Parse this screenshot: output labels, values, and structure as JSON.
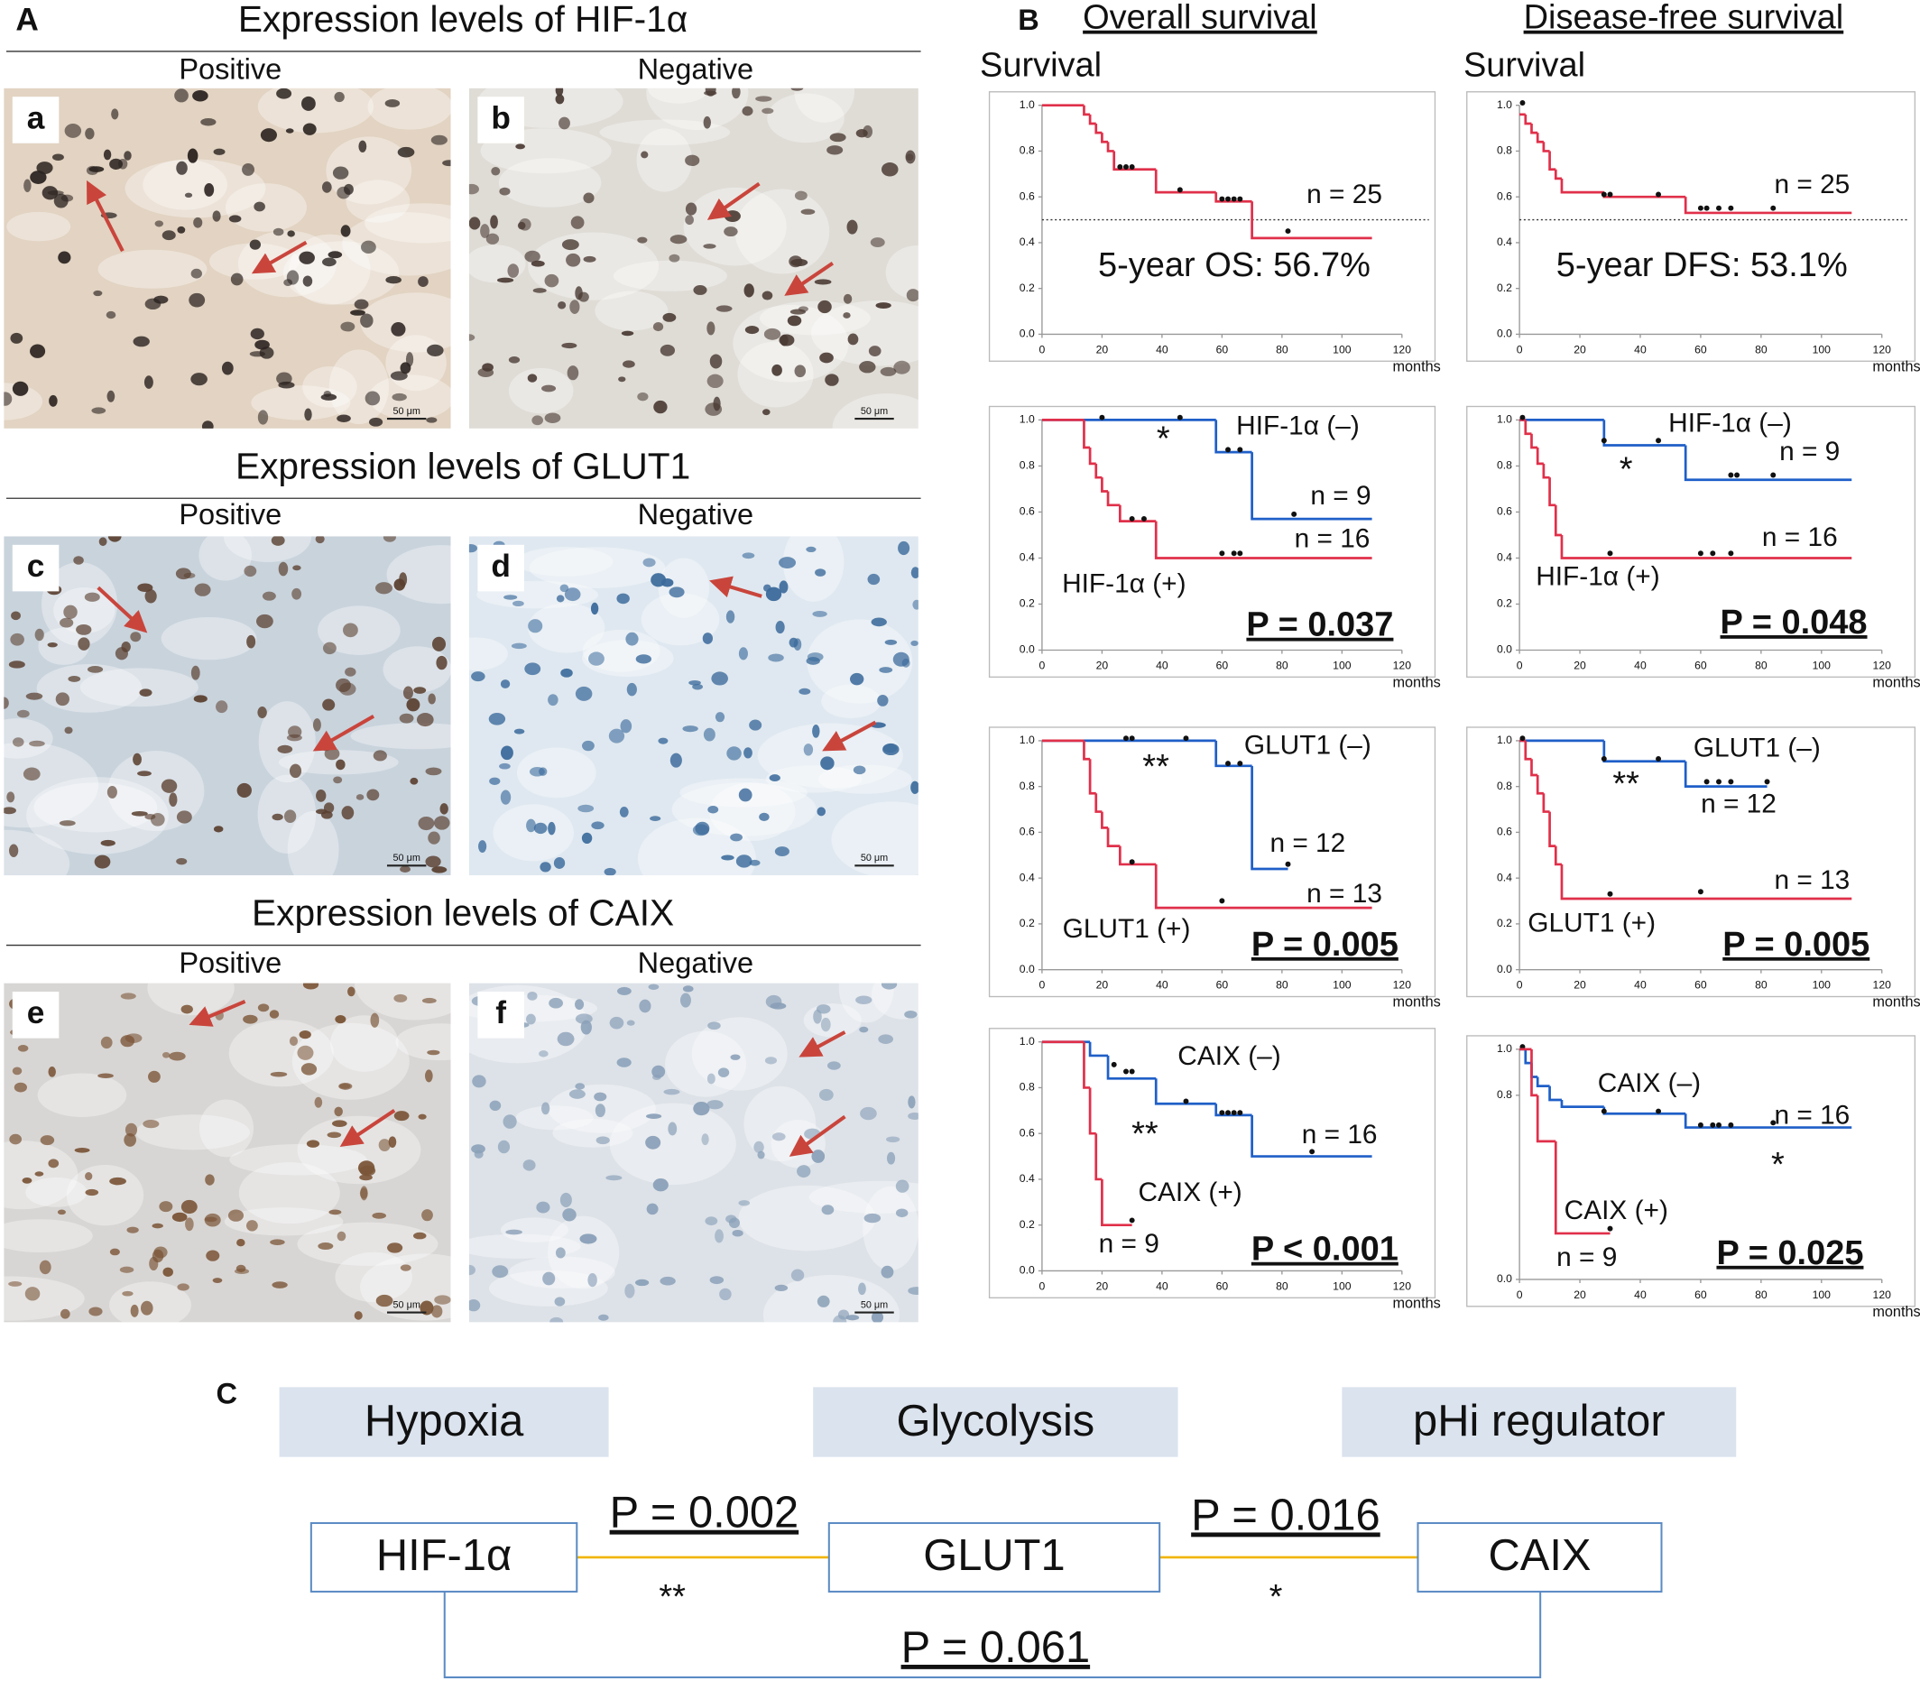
{
  "panel_a": {
    "label": "A",
    "rows": [
      {
        "title": "Expression levels of  HIF-1α",
        "positive": "Positive",
        "negative": "Negative",
        "images": [
          {
            "letter": "a",
            "scale": "50 μm"
          },
          {
            "letter": "b",
            "scale": "50 μm"
          }
        ]
      },
      {
        "title": "Expression levels of  GLUT1",
        "positive": "Positive",
        "negative": "Negative",
        "images": [
          {
            "letter": "c",
            "scale": "50 μm"
          },
          {
            "letter": "d",
            "scale": "50 μm"
          }
        ]
      },
      {
        "title": "Expression levels of  CAIX",
        "positive": "Positive",
        "negative": "Negative",
        "images": [
          {
            "letter": "e",
            "scale": "50 μm"
          },
          {
            "letter": "f",
            "scale": "50 μm"
          }
        ]
      }
    ]
  },
  "panel_b": {
    "label": "B",
    "columns": [
      "Overall survival",
      "Disease-free survival"
    ],
    "y_titles": [
      "Survival",
      "Survival"
    ]
  },
  "chart_data": [
    {
      "type": "step",
      "xlim": [
        0,
        120
      ],
      "ylim": [
        0,
        1
      ],
      "xticks": [
        0,
        20,
        40,
        60,
        80,
        100,
        120
      ],
      "yticks": [
        {
          "value": 0,
          "label": "0.0"
        },
        {
          "value": 0.2,
          "label": "0.2"
        },
        {
          "value": 0.4,
          "label": "0.4"
        },
        {
          "value": 0.6,
          "label": "0.6"
        },
        {
          "value": 0.8,
          "label": "0.8"
        },
        {
          "value": 1,
          "label": "1.0"
        }
      ],
      "xlabel": "months",
      "ref_line": 0.5,
      "series": [
        {
          "color": "#e0304a",
          "x": [
            0,
            14,
            16,
            18,
            20,
            22,
            24,
            38,
            58,
            70,
            110
          ],
          "values": [
            1,
            0.96,
            0.92,
            0.88,
            0.84,
            0.8,
            0.72,
            0.62,
            0.58,
            0.42,
            0.42
          ],
          "censored_x": [
            26,
            28,
            30,
            46,
            60,
            62,
            64,
            66,
            82
          ],
          "censored_values": [
            0.72,
            0.72,
            0.72,
            0.62,
            0.58,
            0.58,
            0.58,
            0.58,
            0.44
          ]
        }
      ],
      "annotations": [
        "n = 25",
        "5-year OS: 56.7%"
      ]
    },
    {
      "type": "step",
      "xlim": [
        0,
        120
      ],
      "ylim": [
        0,
        1
      ],
      "xticks": [
        0,
        20,
        40,
        60,
        80,
        100,
        120
      ],
      "yticks": [
        {
          "value": 0,
          "label": "0.0"
        },
        {
          "value": 0.2,
          "label": "0.2"
        },
        {
          "value": 0.4,
          "label": "0.4"
        },
        {
          "value": 0.6,
          "label": "0.6"
        },
        {
          "value": 0.8,
          "label": "0.8"
        },
        {
          "value": 1,
          "label": "1.0"
        }
      ],
      "xlabel": "months",
      "ref_line": 0.5,
      "series": [
        {
          "color": "#e0304a",
          "x": [
            0,
            2,
            4,
            6,
            8,
            10,
            12,
            14,
            28,
            55,
            110
          ],
          "values": [
            0.96,
            0.92,
            0.88,
            0.84,
            0.8,
            0.72,
            0.68,
            0.62,
            0.6,
            0.53,
            0.53
          ],
          "censored_x": [
            1,
            28,
            30,
            46,
            60,
            62,
            66,
            70,
            84
          ],
          "censored_values": [
            1,
            0.6,
            0.6,
            0.6,
            0.54,
            0.54,
            0.54,
            0.54,
            0.54
          ]
        }
      ],
      "annotations": [
        "n = 25",
        "5-year DFS: 53.1%"
      ]
    },
    {
      "type": "step",
      "xlim": [
        0,
        120
      ],
      "ylim": [
        0,
        1
      ],
      "xticks": [
        0,
        20,
        40,
        60,
        80,
        100,
        120
      ],
      "yticks": [
        {
          "value": 0,
          "label": "0.0"
        },
        {
          "value": 0.2,
          "label": "0.2"
        },
        {
          "value": 0.4,
          "label": "0.4"
        },
        {
          "value": 0.6,
          "label": "0.6"
        },
        {
          "value": 0.8,
          "label": "0.8"
        },
        {
          "value": 1,
          "label": "1.0"
        }
      ],
      "xlabel": "months",
      "series": [
        {
          "name": "HIF-1α (–)",
          "color": "#1f5fc8",
          "x": [
            0,
            58,
            70,
            110
          ],
          "values": [
            1,
            0.86,
            0.57,
            0.57
          ],
          "censored_x": [
            20,
            46,
            62,
            66,
            84
          ],
          "censored_values": [
            1,
            1,
            0.86,
            0.86,
            0.58
          ]
        },
        {
          "name": "HIF-1α (+)",
          "color": "#e0304a",
          "x": [
            0,
            14,
            16,
            18,
            20,
            22,
            26,
            38,
            110
          ],
          "values": [
            1,
            0.88,
            0.81,
            0.75,
            0.69,
            0.63,
            0.56,
            0.4,
            0.4
          ],
          "censored_x": [
            30,
            34,
            60,
            64,
            66
          ],
          "censored_values": [
            0.56,
            0.56,
            0.41,
            0.41,
            0.41
          ]
        }
      ],
      "annotations": [
        "*",
        "n = 9",
        "n = 16",
        "P = 0.037"
      ]
    },
    {
      "type": "step",
      "xlim": [
        0,
        120
      ],
      "ylim": [
        0,
        1
      ],
      "xticks": [
        0,
        20,
        40,
        60,
        80,
        100,
        120
      ],
      "yticks": [
        {
          "value": 0,
          "label": "0.0"
        },
        {
          "value": 0.2,
          "label": "0.2"
        },
        {
          "value": 0.4,
          "label": "0.4"
        },
        {
          "value": 0.6,
          "label": "0.6"
        },
        {
          "value": 0.8,
          "label": "0.8"
        },
        {
          "value": 1,
          "label": "1.0"
        }
      ],
      "xlabel": "months",
      "series": [
        {
          "name": "HIF-1α (–)",
          "color": "#1f5fc8",
          "x": [
            0,
            28,
            55,
            110
          ],
          "values": [
            1,
            0.89,
            0.74,
            0.74
          ],
          "censored_x": [
            28,
            46,
            70,
            72,
            84
          ],
          "censored_values": [
            0.9,
            0.9,
            0.75,
            0.75,
            0.75
          ]
        },
        {
          "name": "HIF-1α (+)",
          "color": "#e0304a",
          "x": [
            0,
            2,
            4,
            6,
            8,
            10,
            12,
            14,
            110
          ],
          "values": [
            1,
            0.94,
            0.88,
            0.81,
            0.75,
            0.63,
            0.5,
            0.4,
            0.4
          ],
          "censored_x": [
            1,
            30,
            60,
            64,
            70
          ],
          "censored_values": [
            1,
            0.41,
            0.41,
            0.41,
            0.41
          ]
        }
      ],
      "annotations": [
        "*",
        "n = 9",
        "n = 16",
        "P = 0.048"
      ]
    },
    {
      "type": "step",
      "xlim": [
        0,
        120
      ],
      "ylim": [
        0,
        1
      ],
      "xticks": [
        0,
        20,
        40,
        60,
        80,
        100,
        120
      ],
      "yticks": [
        {
          "value": 0,
          "label": "0.0"
        },
        {
          "value": 0.2,
          "label": "0.2"
        },
        {
          "value": 0.4,
          "label": "0.4"
        },
        {
          "value": 0.6,
          "label": "0.6"
        },
        {
          "value": 0.8,
          "label": "0.8"
        },
        {
          "value": 1,
          "label": "1.0"
        }
      ],
      "xlabel": "months",
      "series": [
        {
          "name": "GLUT1 (–)",
          "color": "#1f5fc8",
          "x": [
            0,
            58,
            70,
            82
          ],
          "values": [
            1,
            0.89,
            0.44,
            0.44
          ],
          "censored_x": [
            28,
            30,
            48,
            62,
            66,
            82
          ],
          "censored_values": [
            1,
            1,
            1,
            0.89,
            0.89,
            0.45
          ]
        },
        {
          "name": "GLUT1 (+)",
          "color": "#e0304a",
          "x": [
            0,
            14,
            16,
            18,
            20,
            22,
            26,
            38,
            110
          ],
          "values": [
            1,
            0.92,
            0.77,
            0.69,
            0.62,
            0.54,
            0.46,
            0.27,
            0.27
          ],
          "censored_x": [
            30,
            60
          ],
          "censored_values": [
            0.46,
            0.29
          ]
        }
      ],
      "annotations": [
        "**",
        "n = 12",
        "n = 13",
        "P = 0.005"
      ]
    },
    {
      "type": "step",
      "xlim": [
        0,
        120
      ],
      "ylim": [
        0,
        1
      ],
      "xticks": [
        0,
        20,
        40,
        60,
        80,
        100,
        120
      ],
      "yticks": [
        {
          "value": 0,
          "label": "0.0"
        },
        {
          "value": 0.2,
          "label": "0.2"
        },
        {
          "value": 0.4,
          "label": "0.4"
        },
        {
          "value": 0.6,
          "label": "0.6"
        },
        {
          "value": 0.8,
          "label": "0.8"
        },
        {
          "value": 1,
          "label": "1.0"
        }
      ],
      "xlabel": "months",
      "series": [
        {
          "name": "GLUT1 (–)",
          "color": "#1f5fc8",
          "x": [
            0,
            28,
            55,
            82
          ],
          "values": [
            1,
            0.91,
            0.8,
            0.8
          ],
          "censored_x": [
            28,
            46,
            62,
            66,
            70,
            82
          ],
          "censored_values": [
            0.91,
            0.91,
            0.81,
            0.81,
            0.81,
            0.81
          ]
        },
        {
          "name": "GLUT1 (+)",
          "color": "#e0304a",
          "x": [
            0,
            2,
            4,
            6,
            8,
            10,
            12,
            14,
            110
          ],
          "values": [
            1,
            0.92,
            0.85,
            0.77,
            0.69,
            0.54,
            0.46,
            0.31,
            0.31
          ],
          "censored_x": [
            1,
            30,
            60
          ],
          "censored_values": [
            1,
            0.32,
            0.33
          ]
        }
      ],
      "annotations": [
        "**",
        "n = 12",
        "n = 13",
        "P = 0.005"
      ]
    },
    {
      "type": "step",
      "xlim": [
        0,
        120
      ],
      "ylim": [
        0,
        1
      ],
      "xticks": [
        0,
        20,
        40,
        60,
        80,
        100,
        120
      ],
      "yticks": [
        {
          "value": 0,
          "label": "0.0"
        },
        {
          "value": 0.2,
          "label": "0.2"
        },
        {
          "value": 0.4,
          "label": "0.4"
        },
        {
          "value": 0.6,
          "label": "0.6"
        },
        {
          "value": 0.8,
          "label": "0.8"
        },
        {
          "value": 1,
          "label": "1.0"
        }
      ],
      "xlabel": "months",
      "series": [
        {
          "name": "CAIX (–)",
          "color": "#1f5fc8",
          "x": [
            0,
            16,
            22,
            38,
            58,
            70,
            110
          ],
          "values": [
            1,
            0.94,
            0.84,
            0.73,
            0.68,
            0.5,
            0.5
          ],
          "censored_x": [
            24,
            28,
            30,
            48,
            60,
            62,
            64,
            66,
            90
          ],
          "censored_values": [
            0.89,
            0.86,
            0.86,
            0.73,
            0.68,
            0.68,
            0.68,
            0.68,
            0.51
          ]
        },
        {
          "name": "CAIX (+)",
          "color": "#e0304a",
          "x": [
            0,
            14,
            16,
            18,
            20,
            30
          ],
          "values": [
            1,
            0.8,
            0.6,
            0.4,
            0.2,
            0.2
          ],
          "censored_x": [
            30
          ],
          "censored_values": [
            0.21
          ]
        }
      ],
      "annotations": [
        "**",
        "n = 16",
        "n = 9",
        "P < 0.001"
      ]
    },
    {
      "type": "step",
      "xlim": [
        0,
        120
      ],
      "ylim": [
        0,
        1
      ],
      "xticks": [
        0,
        20,
        40,
        60,
        80,
        100,
        120
      ],
      "yticks": [
        {
          "value": 0,
          "label": "0.0"
        },
        {
          "value": 0.8,
          "label": "0.8"
        },
        {
          "value": 1,
          "label": "1.0"
        }
      ],
      "xlabel": "months",
      "series": [
        {
          "name": "CAIX (–)",
          "color": "#1f5fc8",
          "x": [
            0,
            2,
            4,
            6,
            10,
            14,
            28,
            55,
            110
          ],
          "values": [
            1,
            0.94,
            0.88,
            0.84,
            0.78,
            0.75,
            0.72,
            0.66,
            0.66
          ],
          "censored_x": [
            1,
            28,
            46,
            60,
            64,
            66,
            70,
            84
          ],
          "censored_values": [
            1,
            0.72,
            0.72,
            0.66,
            0.66,
            0.66,
            0.66,
            0.67
          ]
        },
        {
          "name": "CAIX (+)",
          "color": "#e0304a",
          "x": [
            0,
            4,
            6,
            12,
            30
          ],
          "values": [
            1,
            0.8,
            0.6,
            0.2,
            0.2
          ],
          "censored_x": [
            30
          ],
          "censored_values": [
            0.21
          ]
        }
      ],
      "annotations": [
        "n = 16",
        "*",
        "n = 9",
        "P = 0.025"
      ]
    }
  ],
  "panel_c": {
    "label": "C",
    "categories": [
      "Hypoxia",
      "Glycolysis",
      "pHi regulator"
    ],
    "nodes": [
      "HIF-1α",
      "GLUT1",
      "CAIX"
    ],
    "links": [
      {
        "p": "P = 0.002",
        "stars": "**"
      },
      {
        "p": "P = 0.016",
        "stars": "*"
      },
      {
        "p": "P = 0.061"
      }
    ]
  }
}
